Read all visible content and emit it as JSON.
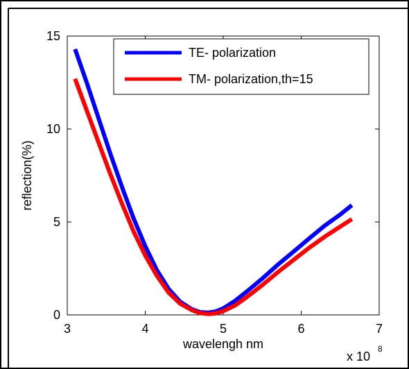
{
  "chart_data": {
    "type": "line",
    "title": "",
    "xlabel": "wavelengh nm",
    "ylabel": "reflection(%)",
    "x_multiplier_label": "x 10",
    "x_multiplier_exponent": "8",
    "xlim": [
      3,
      7
    ],
    "ylim": [
      0,
      15
    ],
    "xticks": [
      3,
      4,
      5,
      6,
      7
    ],
    "yticks": [
      0,
      5,
      10,
      15
    ],
    "grid": false,
    "legend_position": "top-right",
    "series": [
      {
        "name": "TE- polarization",
        "color": "#0000ff",
        "x": [
          3.1,
          3.25,
          3.4,
          3.55,
          3.7,
          3.85,
          4.0,
          4.15,
          4.3,
          4.45,
          4.6,
          4.7,
          4.8,
          4.9,
          5.0,
          5.15,
          5.3,
          5.5,
          5.7,
          5.9,
          6.1,
          6.3,
          6.5,
          6.65
        ],
        "y": [
          14.3,
          12.5,
          10.6,
          8.7,
          6.9,
          5.2,
          3.7,
          2.4,
          1.4,
          0.7,
          0.3,
          0.15,
          0.12,
          0.18,
          0.35,
          0.75,
          1.25,
          1.95,
          2.7,
          3.4,
          4.1,
          4.8,
          5.4,
          5.9
        ]
      },
      {
        "name": "TM- polarization,th=15",
        "color": "#ff0000",
        "x": [
          3.1,
          3.25,
          3.4,
          3.55,
          3.7,
          3.85,
          4.0,
          4.15,
          4.3,
          4.45,
          4.6,
          4.7,
          4.8,
          4.9,
          5.0,
          5.15,
          5.3,
          5.5,
          5.7,
          5.9,
          6.1,
          6.3,
          6.5,
          6.65
        ],
        "y": [
          12.7,
          11.0,
          9.3,
          7.6,
          6.0,
          4.5,
          3.2,
          2.1,
          1.2,
          0.6,
          0.25,
          0.1,
          0.05,
          0.08,
          0.2,
          0.5,
          0.95,
          1.6,
          2.3,
          2.95,
          3.6,
          4.2,
          4.75,
          5.15
        ]
      }
    ]
  }
}
